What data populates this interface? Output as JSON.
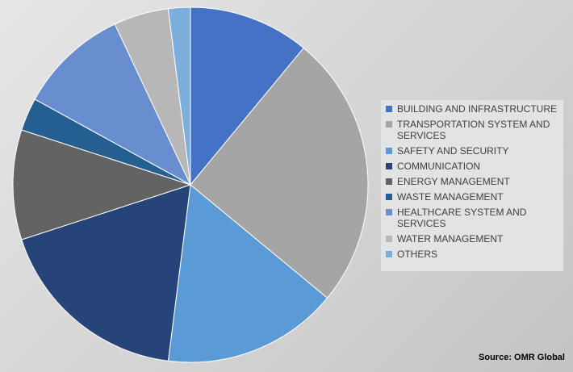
{
  "chart_data": {
    "type": "pie",
    "categories": [
      "BUILDING AND INFRASTRUCTURE",
      "TRANSPORTATION SYSTEM AND SERVICES",
      "SAFETY AND SECURITY",
      "COMMUNICATION",
      "ENERGY MANAGEMENT",
      "WASTE MANAGEMENT",
      "HEALTHCARE SYSTEM AND SERVICES",
      "WATER MANAGEMENT",
      "OTHERS"
    ],
    "values": [
      11,
      25,
      16,
      18,
      10,
      3,
      10,
      5,
      2
    ],
    "colors": [
      "#4472c4",
      "#a5a5a5",
      "#5b9bd5",
      "#264478",
      "#636363",
      "#255e91",
      "#698ed0",
      "#b7b7b7",
      "#7cafdd"
    ],
    "source": "Source: OMR Global"
  }
}
